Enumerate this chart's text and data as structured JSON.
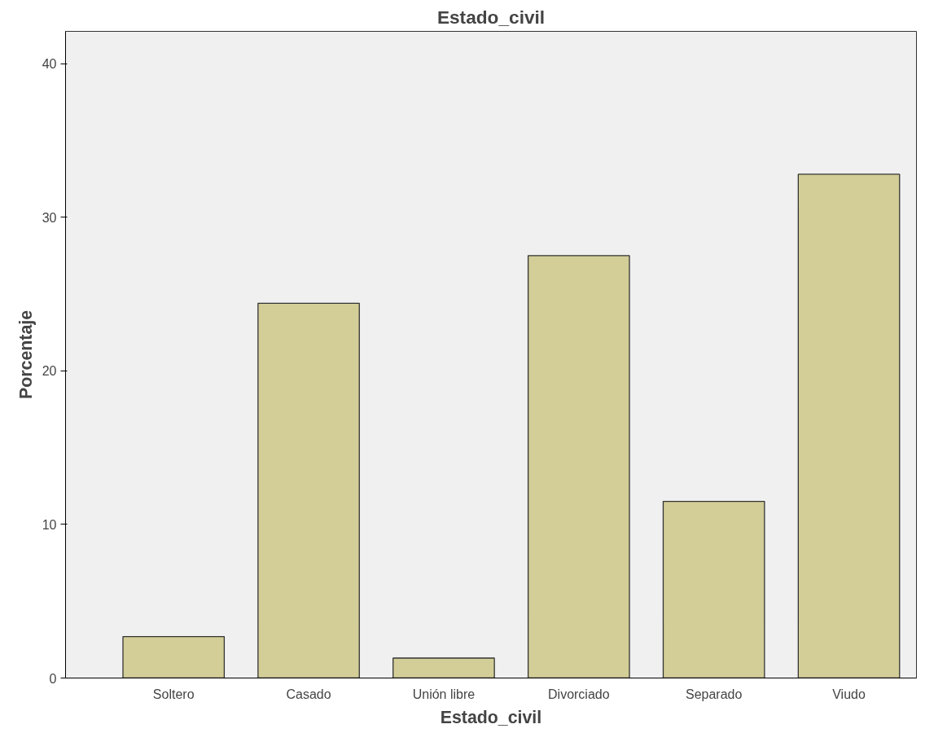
{
  "chart_data": {
    "type": "bar",
    "title": "Estado_civil",
    "xlabel": "Estado_civil",
    "ylabel": "Porcentaje",
    "categories": [
      "Soltero",
      "Casado",
      "Unión libre",
      "Divorciado",
      "Separado",
      "Viudo"
    ],
    "values": [
      2.7,
      24.4,
      1.3,
      27.5,
      11.5,
      32.8
    ],
    "color": "#d3ce97",
    "ylim": [
      0,
      42.1
    ],
    "yticks": [
      0,
      10,
      20,
      30,
      40
    ],
    "grid": false
  }
}
